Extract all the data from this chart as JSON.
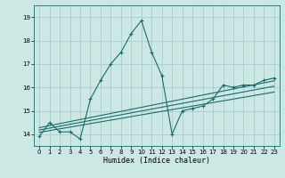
{
  "xlabel": "Humidex (Indice chaleur)",
  "xlim": [
    -0.5,
    23.5
  ],
  "ylim": [
    13.5,
    19.5
  ],
  "yticks": [
    14,
    15,
    16,
    17,
    18,
    19
  ],
  "xticks": [
    0,
    1,
    2,
    3,
    4,
    5,
    6,
    7,
    8,
    9,
    10,
    11,
    12,
    13,
    14,
    15,
    16,
    17,
    18,
    19,
    20,
    21,
    22,
    23
  ],
  "bg_color": "#cce8e5",
  "grid_color": "#aaccca",
  "line_color": "#1a6b6b",
  "main_x": [
    0,
    1,
    2,
    3,
    4,
    5,
    6,
    7,
    8,
    9,
    10,
    11,
    12,
    13,
    14,
    15,
    16,
    17,
    18,
    19,
    20,
    21,
    22,
    23
  ],
  "main_y": [
    13.9,
    14.5,
    14.1,
    14.1,
    13.8,
    15.5,
    16.3,
    17.0,
    17.5,
    18.3,
    18.85,
    17.5,
    16.5,
    14.0,
    15.0,
    15.1,
    15.2,
    15.5,
    16.1,
    16.0,
    16.1,
    16.1,
    16.3,
    16.4
  ],
  "line1_x": [
    0,
    23
  ],
  "line1_y": [
    14.08,
    15.8
  ],
  "line2_x": [
    0,
    23
  ],
  "line2_y": [
    14.18,
    16.05
  ],
  "line3_x": [
    0,
    23
  ],
  "line3_y": [
    14.28,
    16.28
  ]
}
